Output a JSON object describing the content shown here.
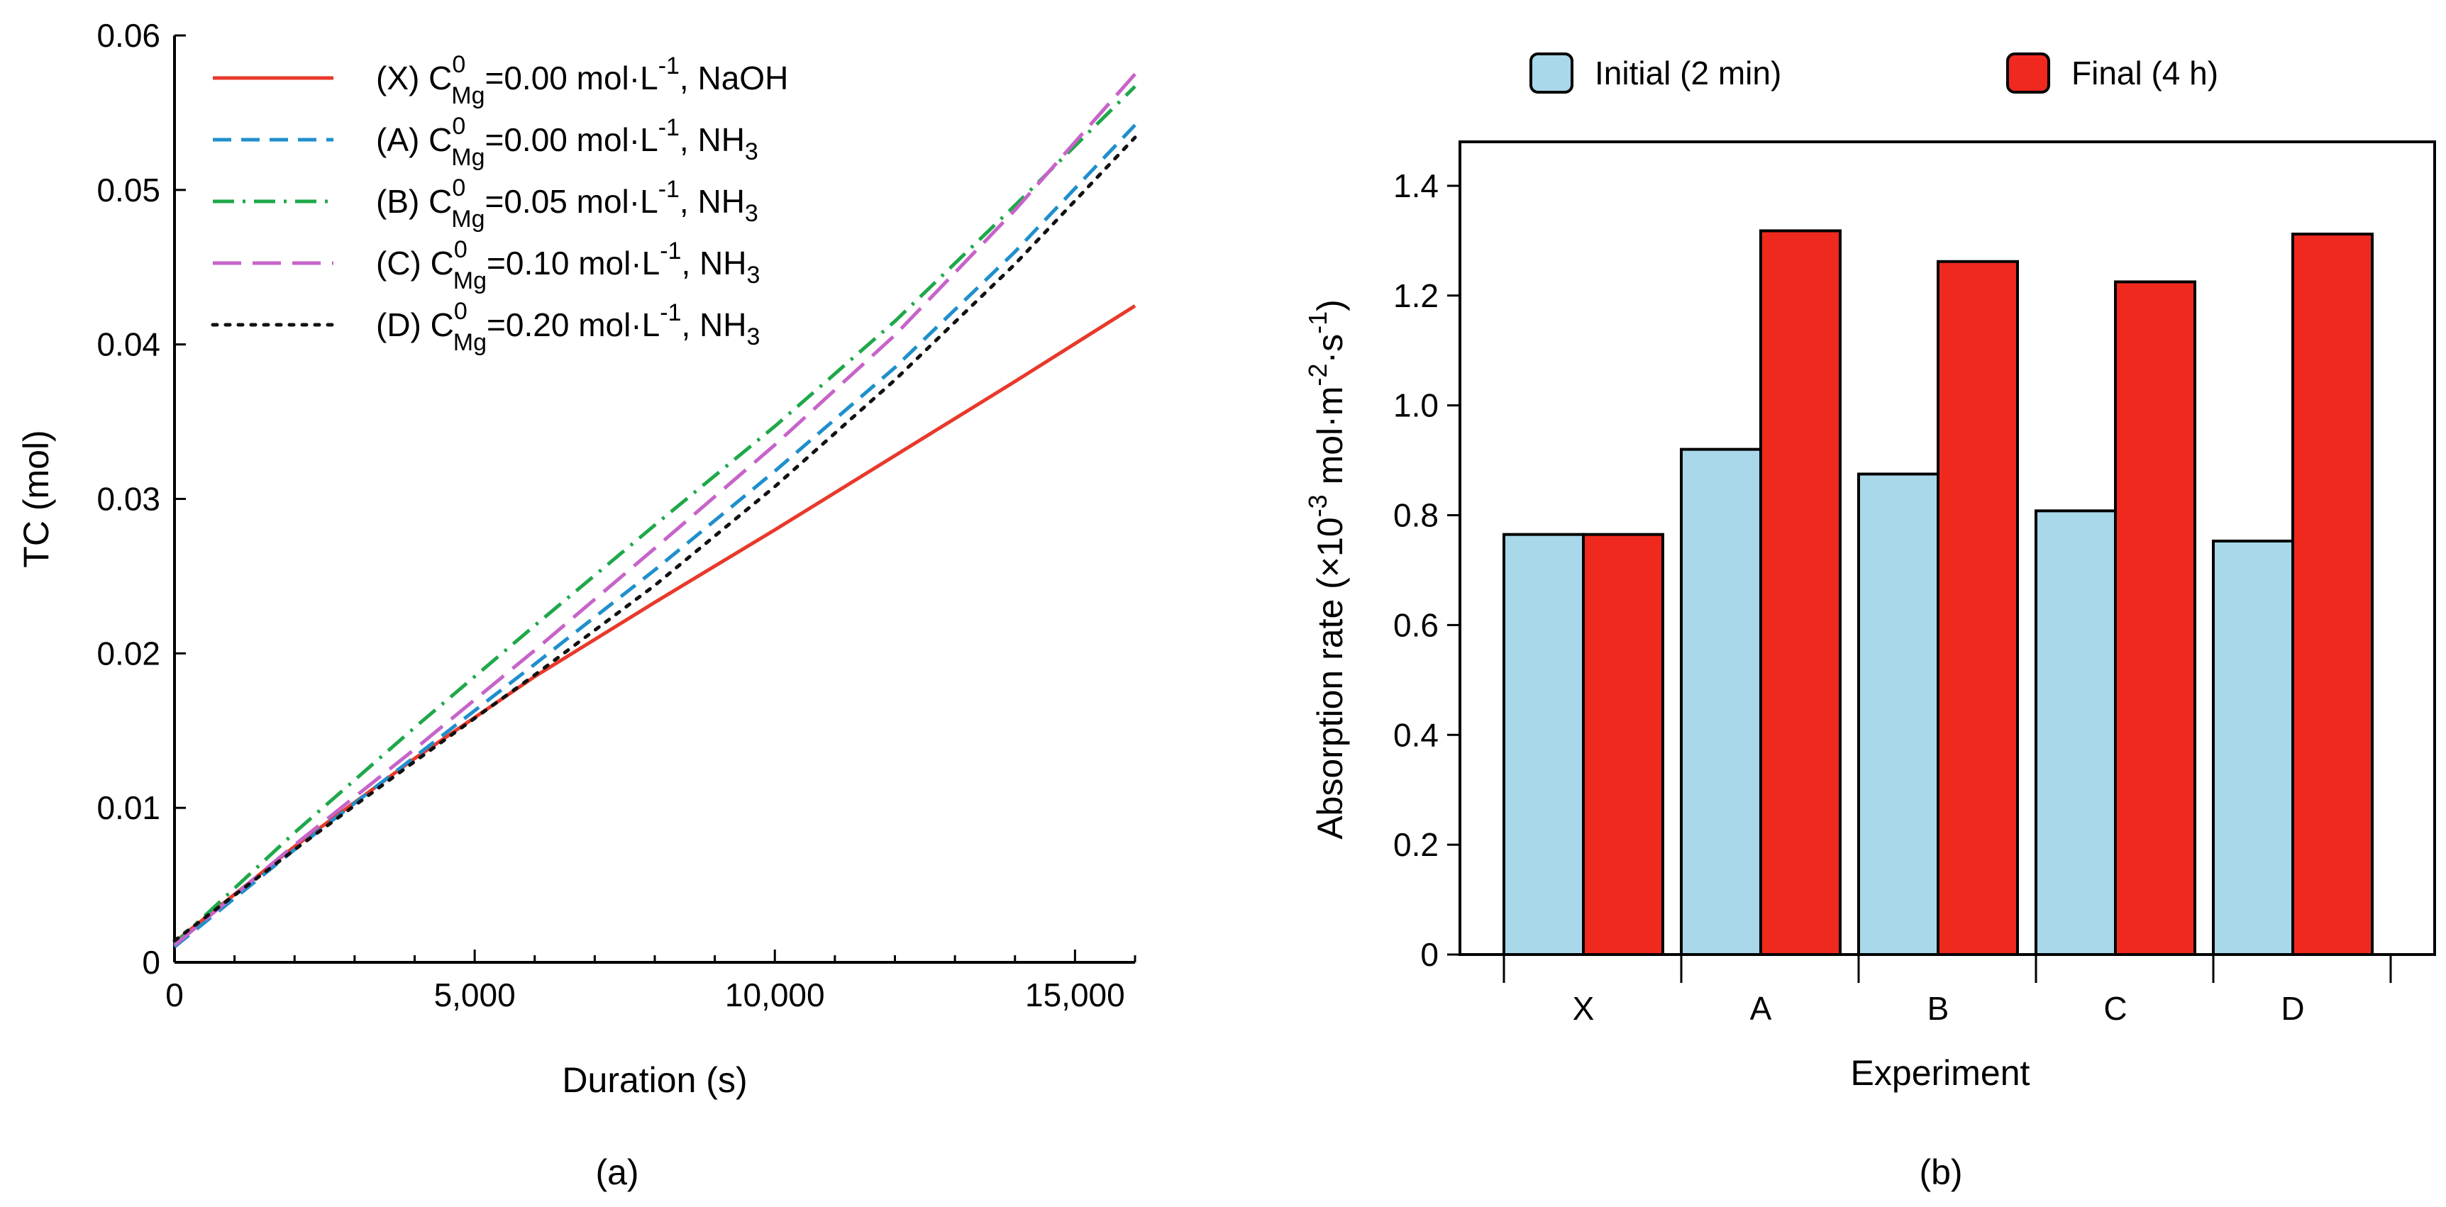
{
  "chart_data": [
    {
      "type": "line",
      "panel_label": "(a)",
      "xlabel": "Duration (s)",
      "ylabel": "TC (mol)",
      "xlim": [
        0,
        16000
      ],
      "ylim": [
        0,
        0.06
      ],
      "xticks": [
        0,
        5000,
        10000,
        15000
      ],
      "xtick_labels": [
        "0",
        "5,000",
        "10,000",
        "15,000"
      ],
      "yticks": [
        0,
        0.01,
        0.02,
        0.03,
        0.04,
        0.05,
        0.06
      ],
      "ytick_labels": [
        "0",
        "0.01",
        "0.02",
        "0.03",
        "0.04",
        "0.05",
        "0.06"
      ],
      "legend_position": "top-left",
      "series": [
        {
          "name": "(X) C_Mg^0=0.00 mol·L^-1, NaOH",
          "legend": {
            "prefix": "(X) C",
            "sub": "Mg",
            "sup": "0",
            "mid": "=0.00 mol·L",
            "unit_sup": "-1",
            "suffix": ", NaOH",
            "suffix_sub": ""
          },
          "color": "#e8392b",
          "dash": "solid",
          "x": [
            0,
            2000,
            4000,
            6000,
            8000,
            10000,
            12000,
            14000,
            16000
          ],
          "y": [
            0.0013,
            0.0075,
            0.0132,
            0.0185,
            0.0233,
            0.028,
            0.0328,
            0.0376,
            0.0425
          ]
        },
        {
          "name": "(A) C_Mg^0=0.00 mol·L^-1, NH3",
          "legend": {
            "prefix": "(A) C",
            "sub": "Mg",
            "sup": "0",
            "mid": "=0.00 mol·L",
            "unit_sup": "-1",
            "suffix": ", NH",
            "suffix_sub": "3"
          },
          "color": "#1f8fcc",
          "dash": "dashed",
          "x": [
            0,
            2000,
            4000,
            6000,
            8000,
            10000,
            12000,
            14000,
            16000
          ],
          "y": [
            0.001,
            0.0073,
            0.0133,
            0.0193,
            0.0254,
            0.0318,
            0.0385,
            0.046,
            0.0542
          ]
        },
        {
          "name": "(B) C_Mg^0=0.05 mol·L^-1, NH3",
          "legend": {
            "prefix": "(B) C",
            "sub": "Mg",
            "sup": "0",
            "mid": "=0.05 mol·L",
            "unit_sup": "-1",
            "suffix": ", NH",
            "suffix_sub": "3"
          },
          "color": "#1fa84a",
          "dash": "dashdot",
          "x": [
            0,
            2000,
            4000,
            6000,
            8000,
            10000,
            12000,
            14000,
            16000
          ],
          "y": [
            0.0012,
            0.0084,
            0.0152,
            0.0218,
            0.0283,
            0.0347,
            0.0415,
            0.049,
            0.0567
          ]
        },
        {
          "name": "(C) C_Mg^0=0.10 mol·L^-1, NH3",
          "legend": {
            "prefix": "(C) C",
            "sub": "Mg",
            "sup": "0",
            "mid": "=0.10 mol·L",
            "unit_sup": "-1",
            "suffix": ", NH",
            "suffix_sub": "3"
          },
          "color": "#c763c9",
          "dash": "longdash",
          "x": [
            0,
            2000,
            4000,
            6000,
            8000,
            10000,
            12000,
            14000,
            16000
          ],
          "y": [
            0.0011,
            0.0076,
            0.0138,
            0.0202,
            0.0268,
            0.0335,
            0.0406,
            0.0487,
            0.0575
          ]
        },
        {
          "name": "(D) C_Mg^0=0.20 mol·L^-1, NH3",
          "legend": {
            "prefix": "(D) C",
            "sub": "Mg",
            "sup": "0",
            "mid": "=0.20 mol·L",
            "unit_sup": "-1",
            "suffix": ", NH",
            "suffix_sub": "3"
          },
          "color": "#111111",
          "dash": "dotted",
          "x": [
            0,
            2000,
            4000,
            6000,
            8000,
            10000,
            12000,
            14000,
            16000
          ],
          "y": [
            0.0014,
            0.0073,
            0.013,
            0.0186,
            0.0244,
            0.0308,
            0.0377,
            0.0452,
            0.0534
          ]
        }
      ]
    },
    {
      "type": "bar",
      "panel_label": "(b)",
      "xlabel": "Experiment",
      "ylabel": {
        "prefix": "Absorption rate (×10",
        "sup1": "-3",
        "mid": " mol·m",
        "sup2": "-2",
        "mid2": "·s",
        "sup3": "-1",
        "suffix": ")"
      },
      "ylim": [
        0,
        1.48
      ],
      "yticks": [
        0,
        0.2,
        0.4,
        0.6,
        0.8,
        1.0,
        1.2,
        1.4
      ],
      "ytick_labels": [
        "0",
        "0.2",
        "0.4",
        "0.6",
        "0.8",
        "1.0",
        "1.2",
        "1.4"
      ],
      "categories": [
        "X",
        "A",
        "B",
        "C",
        "D"
      ],
      "legend_position": "top",
      "series": [
        {
          "name": "Initial (2 min)",
          "color": "#a8d8ea",
          "values": [
            0.765,
            0.92,
            0.875,
            0.808,
            0.753
          ]
        },
        {
          "name": "Final (4 h)",
          "color": "#f0291f",
          "values": [
            0.765,
            1.318,
            1.262,
            1.225,
            1.312
          ]
        }
      ]
    }
  ]
}
